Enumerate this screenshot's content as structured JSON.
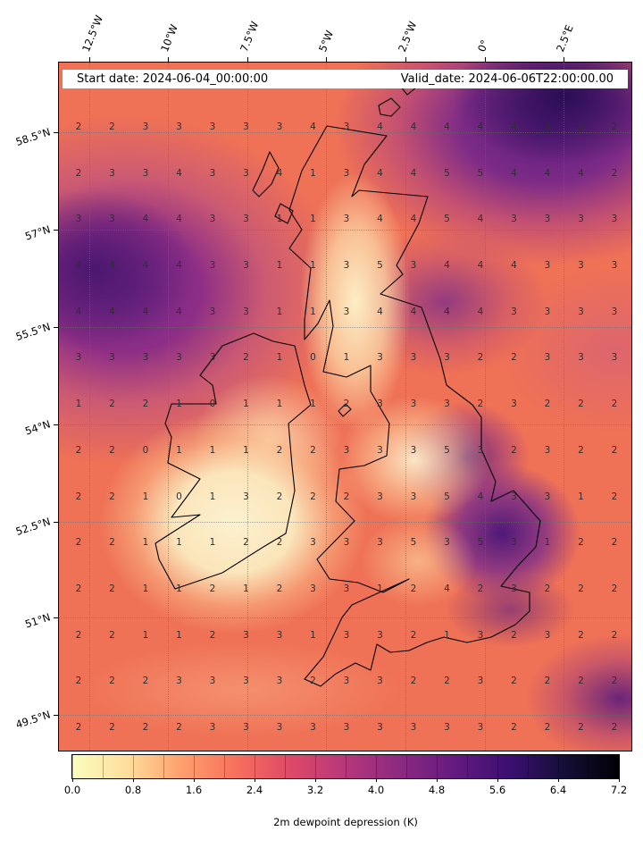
{
  "header": {
    "start_date": "Start date: 2024-06-04_00:00:00",
    "valid_date": "Valid_date: 2024-06-06T22:00:00.00"
  },
  "axes": {
    "lon_ticks": [
      "12.5°W",
      "10°W",
      "7.5°W",
      "5°W",
      "2.5°W",
      "0°",
      "2.5°E"
    ],
    "lat_ticks": [
      "58.5°N",
      "57°N",
      "55.5°N",
      "54°N",
      "52.5°N",
      "51°N",
      "49.5°N"
    ]
  },
  "colorbar": {
    "label": "2m dewpoint depression (K)",
    "ticks": [
      "0.0",
      "0.8",
      "1.6",
      "2.4",
      "3.2",
      "4.0",
      "4.8",
      "5.6",
      "6.4",
      "7.2"
    ],
    "colors": [
      "#fcfdbf",
      "#fede9c",
      "#fe9f6d",
      "#f7705c",
      "#de4968",
      "#b6377a",
      "#8c2981",
      "#641a80",
      "#3b0f70",
      "#150e37",
      "#000004"
    ]
  },
  "chart_data": {
    "type": "heatmap",
    "title": "2m dewpoint depression (K)",
    "start_date": "2024-06-04_00:00:00",
    "valid_date": "2024-06-06T22:00:00.00",
    "units": "K",
    "value_range": [
      0.0,
      7.2
    ],
    "colorbar_ticks": [
      0.0,
      0.8,
      1.6,
      2.4,
      3.2,
      4.0,
      4.8,
      5.6,
      6.4,
      7.2
    ],
    "colorbar_label": "2m dewpoint depression (K)",
    "colormap": "magma_r (light yellow to orange to red to purple to black)",
    "region": "United Kingdom and Ireland",
    "lon_tick_labels": [
      "12.5°W",
      "10°W",
      "7.5°W",
      "5°W",
      "2.5°W",
      "0°",
      "2.5°E"
    ],
    "lat_tick_labels": [
      "58.5°N",
      "57°N",
      "55.5°N",
      "54°N",
      "52.5°N",
      "51°N",
      "49.5°N"
    ],
    "grid_values": [
      [
        2,
        2,
        3,
        3,
        3,
        3,
        3,
        4,
        3,
        4,
        4,
        4,
        4,
        4,
        3,
        3,
        2
      ],
      [
        2,
        3,
        3,
        4,
        3,
        3,
        4,
        1,
        3,
        4,
        4,
        5,
        5,
        4,
        4,
        4,
        2
      ],
      [
        3,
        3,
        4,
        4,
        3,
        3,
        1,
        1,
        3,
        4,
        4,
        5,
        4,
        3,
        3,
        3,
        3
      ],
      [
        4,
        4,
        4,
        4,
        3,
        3,
        1,
        1,
        3,
        5,
        3,
        4,
        4,
        4,
        3,
        3,
        3
      ],
      [
        4,
        4,
        4,
        4,
        3,
        3,
        1,
        1,
        3,
        4,
        4,
        4,
        4,
        3,
        3,
        3,
        3
      ],
      [
        3,
        3,
        3,
        3,
        3,
        2,
        1,
        0,
        1,
        3,
        3,
        3,
        2,
        2,
        3,
        3,
        3
      ],
      [
        1,
        2,
        2,
        1,
        0,
        1,
        1,
        1,
        2,
        3,
        3,
        3,
        2,
        3,
        2,
        2,
        2
      ],
      [
        2,
        2,
        0,
        1,
        1,
        1,
        2,
        2,
        3,
        3,
        3,
        5,
        3,
        2,
        3,
        2,
        2
      ],
      [
        2,
        2,
        1,
        0,
        1,
        3,
        2,
        2,
        2,
        3,
        3,
        5,
        4,
        3,
        3,
        1,
        2
      ],
      [
        2,
        2,
        1,
        1,
        1,
        2,
        2,
        3,
        3,
        3,
        5,
        3,
        5,
        3,
        1,
        2,
        2
      ],
      [
        2,
        2,
        1,
        1,
        2,
        1,
        2,
        3,
        3,
        1,
        2,
        4,
        2,
        3,
        2,
        2,
        2
      ],
      [
        2,
        2,
        1,
        1,
        2,
        3,
        3,
        1,
        3,
        3,
        2,
        1,
        3,
        2,
        3,
        2,
        2
      ],
      [
        2,
        2,
        2,
        3,
        3,
        3,
        3,
        2,
        3,
        3,
        2,
        2,
        3,
        2,
        2,
        2,
        2
      ],
      [
        2,
        2,
        2,
        2,
        3,
        3,
        3,
        3,
        3,
        3,
        3,
        3,
        3,
        2,
        2,
        2,
        2
      ]
    ]
  }
}
